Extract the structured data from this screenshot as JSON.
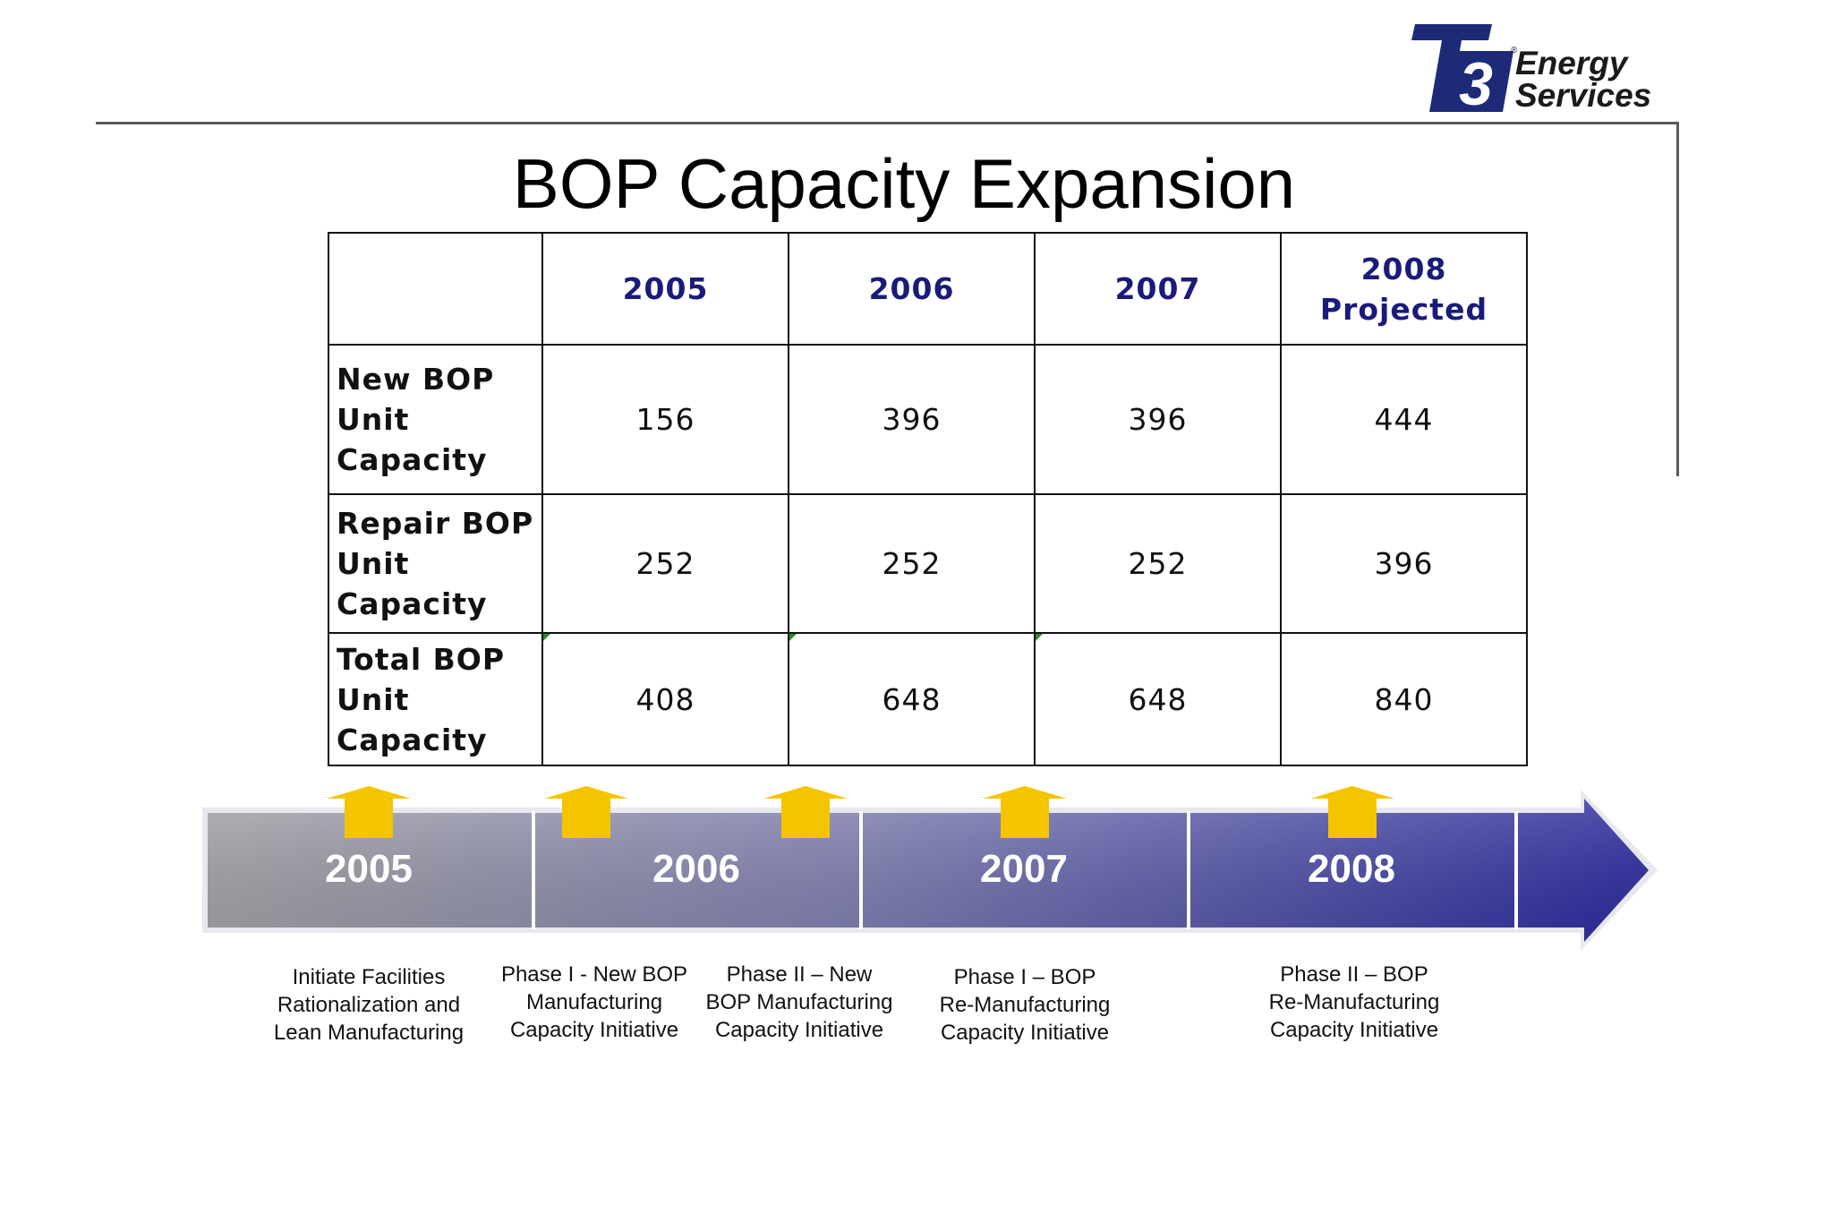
{
  "logo": {
    "mark": "T3",
    "registered": "®",
    "line1": "Energy",
    "line2": "Services",
    "brand_color": "#1c2a78"
  },
  "title": "BOP Capacity Expansion",
  "table": {
    "headers": [
      "",
      "2005",
      "2006",
      "2007",
      "2008 Projected"
    ],
    "header_2008_line1": "2008",
    "header_2008_line2": "Projected",
    "rows": [
      {
        "label_lines": [
          "New BOP",
          "Unit",
          "Capacity"
        ],
        "values": [
          "156",
          "396",
          "396",
          "444"
        ]
      },
      {
        "label_lines": [
          "Repair BOP",
          "Unit",
          "Capacity"
        ],
        "values": [
          "252",
          "252",
          "252",
          "396"
        ]
      },
      {
        "label_lines": [
          "Total BOP",
          "Unit",
          "Capacity"
        ],
        "values": [
          "408",
          "648",
          "648",
          "840"
        ]
      }
    ]
  },
  "timeline": {
    "years": [
      "2005",
      "2006",
      "2007",
      "2008"
    ],
    "milestones": [
      {
        "lines": [
          "Initiate Facilities",
          "Rationalization and",
          "Lean Manufacturing"
        ]
      },
      {
        "lines": [
          "Phase I - New BOP",
          "Manufacturing",
          "Capacity Initiative"
        ]
      },
      {
        "lines": [
          "Phase II – New",
          "BOP Manufacturing",
          "Capacity Initiative"
        ]
      },
      {
        "lines": [
          "Phase I – BOP",
          "Re-Manufacturing",
          "Capacity Initiative"
        ]
      },
      {
        "lines": [
          "Phase II – BOP",
          "Re-Manufacturing",
          "Capacity Initiative"
        ]
      }
    ],
    "arrow_color": "#f5c400",
    "band_start_color": "#a2a2a6",
    "band_end_color": "#2a2a9e"
  }
}
